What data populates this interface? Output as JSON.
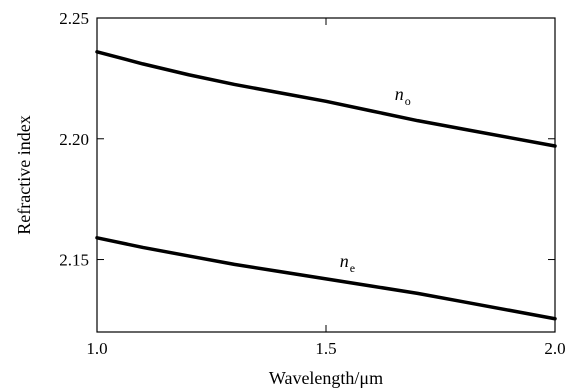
{
  "chart_data": {
    "type": "line",
    "title": "",
    "xlabel": "Wavelength/μm",
    "ylabel": "Refractive index",
    "xlim": [
      1.0,
      2.0
    ],
    "ylim": [
      2.12,
      2.25
    ],
    "xticks": [
      1.0,
      1.5,
      2.0
    ],
    "xtick_labels": [
      "1.0",
      "1.5",
      "2.0"
    ],
    "yticks": [
      2.15,
      2.2,
      2.25
    ],
    "ytick_labels": [
      "2.15",
      "2.20",
      "2.25"
    ],
    "grid": false,
    "legend": "none",
    "series": [
      {
        "label_main": "n",
        "label_sub": "o",
        "x": [
          1.0,
          1.1,
          1.2,
          1.3,
          1.4,
          1.5,
          1.6,
          1.7,
          1.8,
          1.9,
          2.0
        ],
        "y": [
          2.236,
          2.231,
          2.2265,
          2.2225,
          2.219,
          2.2155,
          2.2115,
          2.2075,
          2.204,
          2.2005,
          2.197
        ]
      },
      {
        "label_main": "n",
        "label_sub": "e",
        "x": [
          1.0,
          1.1,
          1.2,
          1.3,
          1.4,
          1.5,
          1.6,
          1.7,
          1.8,
          1.9,
          2.0
        ],
        "y": [
          2.159,
          2.155,
          2.1515,
          2.148,
          2.145,
          2.142,
          2.139,
          2.136,
          2.1325,
          2.129,
          2.1255
        ]
      }
    ]
  }
}
